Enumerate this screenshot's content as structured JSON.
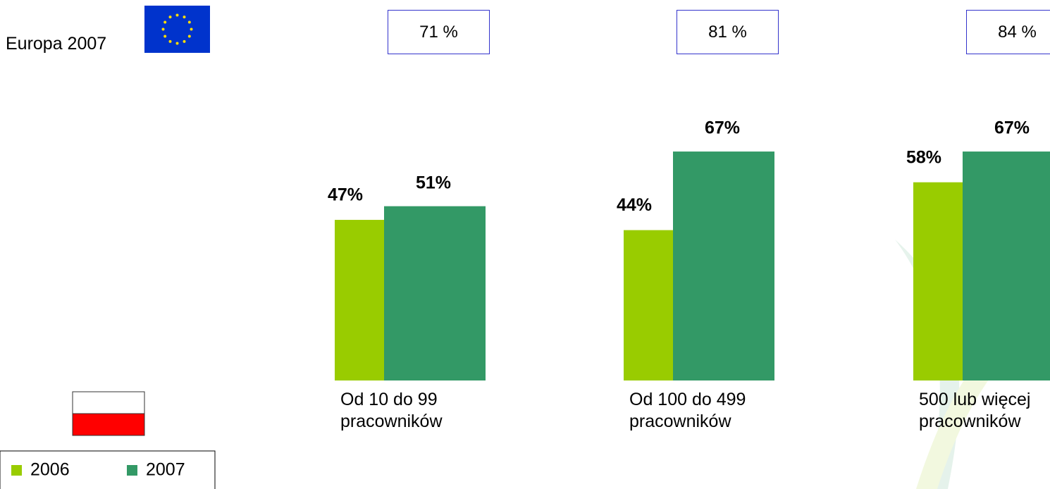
{
  "chart_data": {
    "type": "bar",
    "categories": [
      "Od 10 do 99 pracowników",
      "Od 100 do 499 pracowników",
      "500 lub więcej pracowników"
    ],
    "series": [
      {
        "name": "2006",
        "color": "#99cc00",
        "values": [
          47,
          44,
          58
        ],
        "value_labels": [
          "47%",
          "44%",
          "58%"
        ]
      },
      {
        "name": "2007",
        "color": "#339966",
        "values": [
          51,
          67,
          67
        ],
        "value_labels": [
          "51%",
          "67%",
          "67%"
        ]
      }
    ],
    "ylim": [
      0,
      100
    ],
    "europe": {
      "label": "Europa 2007",
      "values": [
        71,
        81,
        84
      ],
      "value_labels": [
        "71 %",
        "81 %",
        "84 %"
      ]
    }
  }
}
